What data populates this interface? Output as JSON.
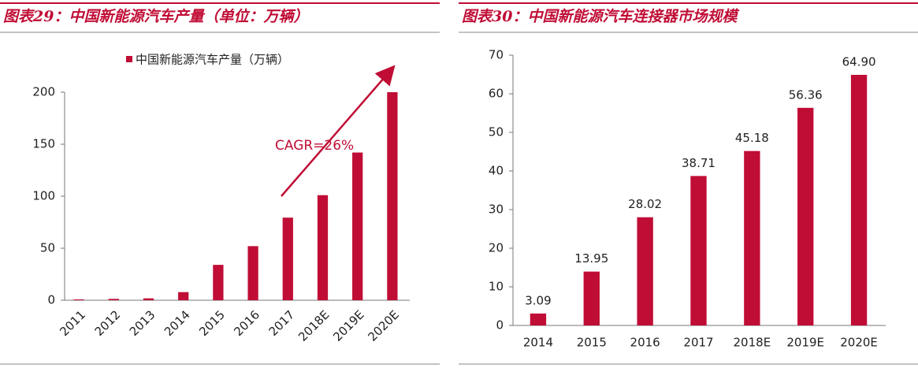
{
  "chart_data": [
    {
      "type": "bar",
      "title": "图表29：中国新能源汽车产量（单位：万辆）",
      "categories": [
        "2011",
        "2012",
        "2013",
        "2014",
        "2015",
        "2016",
        "2017",
        "2018E",
        "2019E",
        "2020E"
      ],
      "series": [
        {
          "name": "中国新能源汽车产量（万辆）",
          "color": "#c00d35",
          "values": [
            0.8,
            1.3,
            1.8,
            7.8,
            34,
            52,
            79.4,
            101,
            142,
            200
          ]
        }
      ],
      "ylim": [
        0,
        200
      ],
      "yticks": [
        0,
        50,
        100,
        150,
        200
      ],
      "annotation": "CAGR=26%",
      "legend": "top"
    },
    {
      "type": "bar",
      "title": "图表30：中国新能源汽车连接器市场规模",
      "categories": [
        "2014",
        "2015",
        "2016",
        "2017",
        "2018E",
        "2019E",
        "2020E"
      ],
      "values": [
        3.09,
        13.95,
        28.02,
        38.71,
        45.18,
        56.36,
        64.9
      ],
      "value_labels": [
        "3.09",
        "13.95",
        "28.02",
        "38.71",
        "45.18",
        "56.36",
        "64.90"
      ],
      "color": "#c00d35",
      "ylim": [
        0,
        70
      ],
      "yticks": [
        0,
        10,
        20,
        30,
        40,
        50,
        60,
        70
      ]
    }
  ]
}
